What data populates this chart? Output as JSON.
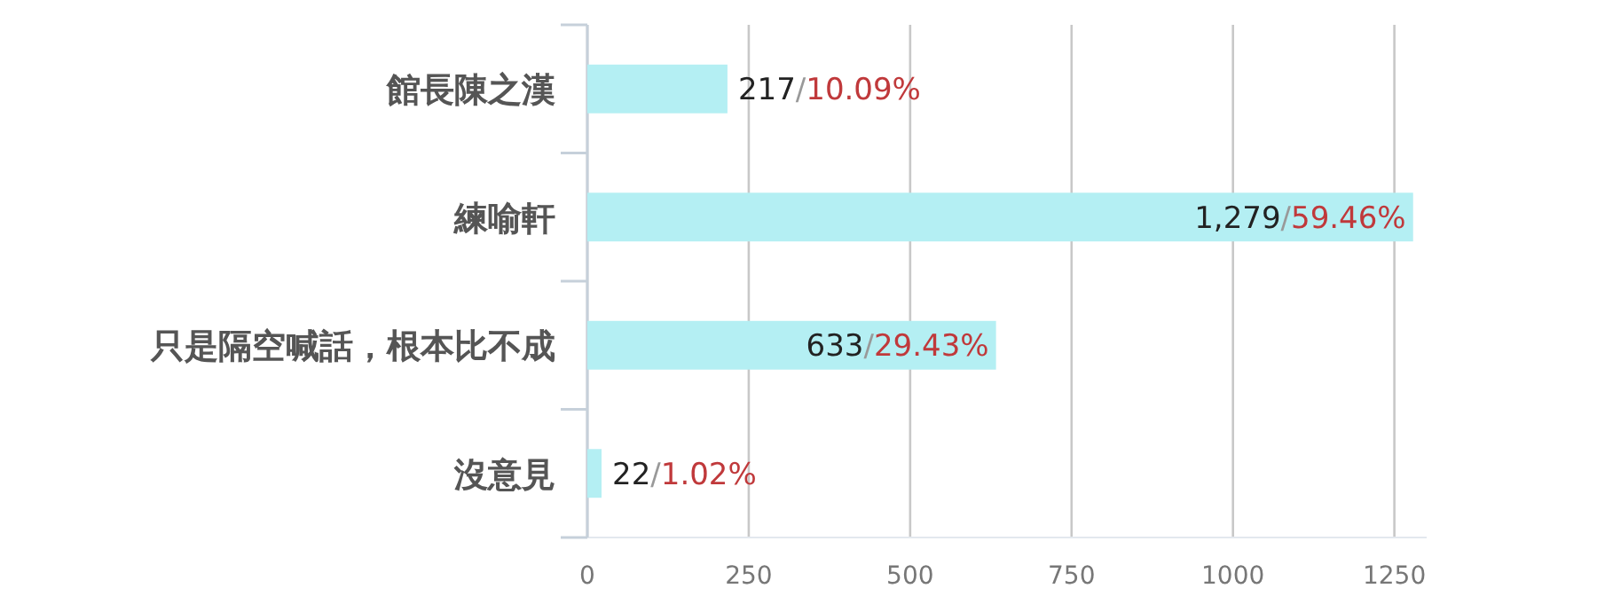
{
  "chart_data": {
    "type": "bar",
    "orientation": "horizontal",
    "categories": [
      "館長陳之漢",
      "練喻軒",
      "只是隔空喊話，根本比不成",
      "沒意見"
    ],
    "values": [
      217,
      1279,
      633,
      22
    ],
    "value_labels": [
      "217/10.09%",
      "1,279/59.46%",
      "633/29.43%",
      "22/1.02%"
    ],
    "color": "#b4eff3",
    "xlim": [
      0,
      1300
    ],
    "xticks": [
      0,
      250,
      500,
      750,
      1000,
      1250
    ],
    "grid": "x"
  }
}
